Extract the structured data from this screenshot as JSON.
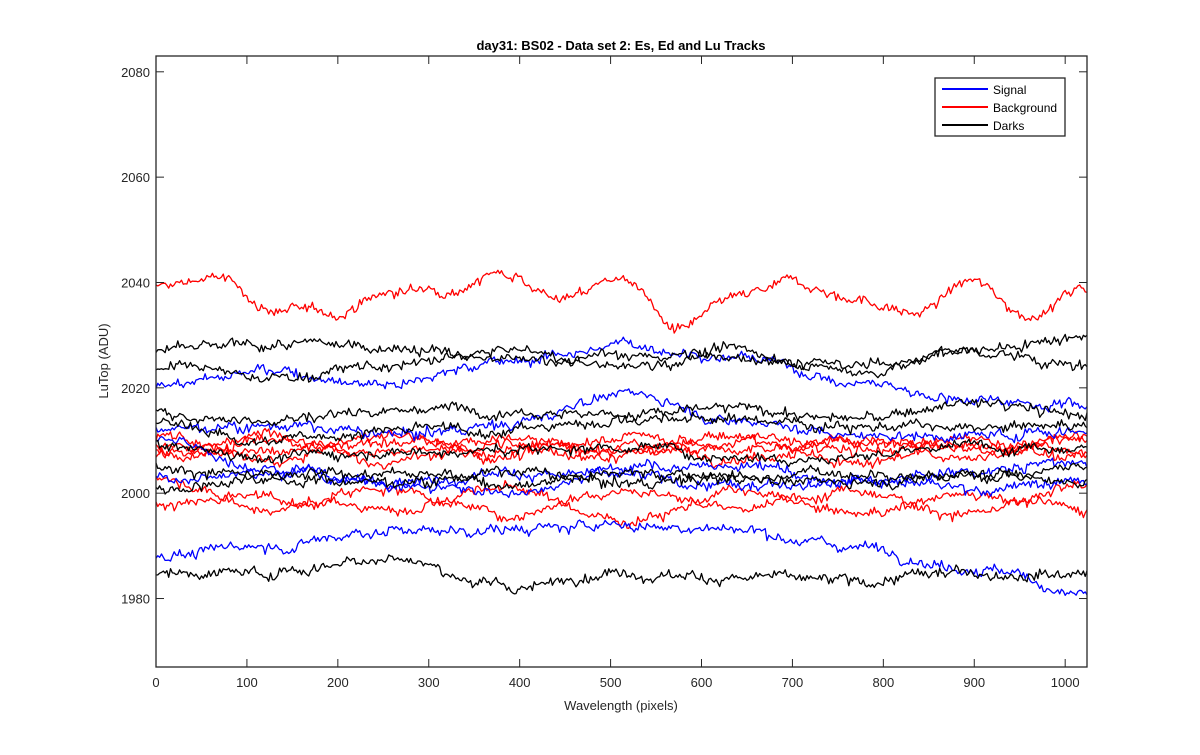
{
  "chart_data": {
    "type": "line",
    "title": "day31: BS02 - Data set 2: Es, Ed and Lu Tracks",
    "xlabel": "Wavelength (pixels)",
    "ylabel": "LuTop (ADU)",
    "xlim": [
      0,
      1024
    ],
    "ylim": [
      1967,
      2083
    ],
    "xticks": [
      0,
      100,
      200,
      300,
      400,
      500,
      600,
      700,
      800,
      900,
      1000
    ],
    "yticks": [
      1980,
      2000,
      2020,
      2040,
      2060,
      2080
    ],
    "grid": false,
    "legend_position": "top-right",
    "legend": [
      {
        "label": "Signal",
        "color": "#0000ff"
      },
      {
        "label": "Background",
        "color": "#ff0000"
      },
      {
        "label": "Darks",
        "color": "#000000"
      }
    ],
    "series": [
      {
        "group": "Background",
        "color": "#ff0000",
        "x": [
          0,
          64,
          128,
          192,
          256,
          320,
          384,
          448,
          512,
          576,
          640,
          704,
          768,
          832,
          896,
          960,
          1024
        ],
        "y": [
          2039,
          2041,
          2035,
          2034,
          2038,
          2039,
          2042,
          2037,
          2041,
          2031,
          2037,
          2040,
          2037,
          2034,
          2040,
          2034,
          2039
        ]
      },
      {
        "group": "Background",
        "color": "#ff0000",
        "x": [
          0,
          128,
          256,
          384,
          512,
          640,
          768,
          896,
          1024
        ],
        "y": [
          2009,
          2008,
          2010,
          2008,
          2009,
          2007,
          2010,
          2008,
          2010
        ]
      },
      {
        "group": "Background",
        "color": "#ff0000",
        "x": [
          0,
          128,
          256,
          384,
          512,
          640,
          768,
          896,
          1024
        ],
        "y": [
          2007,
          2010,
          2006,
          2009,
          2007,
          2010,
          2006,
          2010,
          2007
        ]
      },
      {
        "group": "Background",
        "color": "#ff0000",
        "x": [
          0,
          128,
          256,
          384,
          512,
          640,
          768,
          896,
          1024
        ],
        "y": [
          2011,
          2006,
          2011,
          2007,
          2011,
          2008,
          2010,
          2007,
          2011
        ]
      },
      {
        "group": "Background",
        "color": "#ff0000",
        "x": [
          0,
          128,
          256,
          384,
          512,
          640,
          768,
          896,
          1024
        ],
        "y": [
          2008,
          2011,
          2008,
          2010,
          2008,
          2011,
          2008,
          2009,
          2008
        ]
      },
      {
        "group": "Background",
        "color": "#ff0000",
        "x": [
          0,
          128,
          256,
          384,
          512,
          640,
          768,
          896,
          1024
        ],
        "y": [
          1998,
          1999,
          1997,
          2001,
          1995,
          2000,
          1996,
          2000,
          1997
        ]
      },
      {
        "group": "Background",
        "color": "#ff0000",
        "x": [
          0,
          128,
          256,
          384,
          512,
          640,
          768,
          896,
          1024
        ],
        "y": [
          2003,
          1997,
          2001,
          1996,
          2001,
          1997,
          2001,
          1996,
          2001
        ]
      },
      {
        "group": "Signal",
        "color": "#0000ff",
        "x": [
          0,
          128,
          256,
          384,
          512,
          640,
          768,
          896,
          1024
        ],
        "y": [
          2021,
          2023,
          2021,
          2025,
          2028,
          2026,
          2021,
          2018,
          2017
        ]
      },
      {
        "group": "Signal",
        "color": "#0000ff",
        "x": [
          0,
          128,
          256,
          384,
          512,
          640,
          768,
          896,
          1024
        ],
        "y": [
          2012,
          2013,
          2011,
          2013,
          2019,
          2014,
          2011,
          2011,
          2012
        ]
      },
      {
        "group": "Signal",
        "color": "#0000ff",
        "x": [
          0,
          128,
          256,
          384,
          512,
          640,
          768,
          896,
          1024
        ],
        "y": [
          2003,
          2004,
          2002,
          2004,
          2003,
          2001,
          2003,
          2001,
          2002
        ]
      },
      {
        "group": "Signal",
        "color": "#0000ff",
        "x": [
          0,
          128,
          256,
          384,
          512,
          640,
          768,
          896,
          1024
        ],
        "y": [
          2010,
          2005,
          2002,
          2000,
          2005,
          2005,
          2002,
          2004,
          2006
        ]
      },
      {
        "group": "Signal",
        "color": "#0000ff",
        "x": [
          0,
          128,
          256,
          384,
          512,
          640,
          768,
          896,
          1024
        ],
        "y": [
          1988,
          1990,
          1993,
          1993,
          1994,
          1993,
          1990,
          1986,
          1981
        ]
      },
      {
        "group": "Darks",
        "color": "#000000",
        "x": [
          0,
          128,
          256,
          384,
          512,
          640,
          768,
          896,
          1024
        ],
        "y": [
          2027,
          2028,
          2028,
          2025,
          2026,
          2026,
          2024,
          2027,
          2030
        ]
      },
      {
        "group": "Darks",
        "color": "#000000",
        "x": [
          0,
          128,
          256,
          384,
          512,
          640,
          768,
          896,
          1024
        ],
        "y": [
          2024,
          2022,
          2024,
          2027,
          2024,
          2027,
          2023,
          2027,
          2024
        ]
      },
      {
        "group": "Darks",
        "color": "#000000",
        "x": [
          0,
          128,
          256,
          384,
          512,
          640,
          768,
          896,
          1024
        ],
        "y": [
          2015,
          2014,
          2016,
          2016,
          2015,
          2016,
          2014,
          2017,
          2015
        ]
      },
      {
        "group": "Darks",
        "color": "#000000",
        "x": [
          0,
          128,
          256,
          384,
          512,
          640,
          768,
          896,
          1024
        ],
        "y": [
          2013,
          2010,
          2012,
          2012,
          2014,
          2014,
          2013,
          2012,
          2013
        ]
      },
      {
        "group": "Darks",
        "color": "#000000",
        "x": [
          0,
          128,
          256,
          384,
          512,
          640,
          768,
          896,
          1024
        ],
        "y": [
          2009,
          2007,
          2008,
          2008,
          2009,
          2007,
          2007,
          2009,
          2009
        ]
      },
      {
        "group": "Darks",
        "color": "#000000",
        "x": [
          0,
          128,
          256,
          384,
          512,
          640,
          768,
          896,
          1024
        ],
        "y": [
          2005,
          2003,
          2004,
          2002,
          2004,
          2003,
          2004,
          2003,
          2005
        ]
      },
      {
        "group": "Darks",
        "color": "#000000",
        "x": [
          0,
          128,
          256,
          384,
          512,
          640,
          768,
          896,
          1024
        ],
        "y": [
          2001,
          2003,
          2002,
          2004,
          2002,
          2003,
          2002,
          2004,
          2002
        ]
      },
      {
        "group": "Darks",
        "color": "#000000",
        "x": [
          0,
          128,
          256,
          384,
          512,
          640,
          768,
          896,
          1024
        ],
        "y": [
          1985,
          1985,
          1988,
          1982,
          1985,
          1984,
          1983,
          1985,
          1985
        ]
      }
    ]
  }
}
